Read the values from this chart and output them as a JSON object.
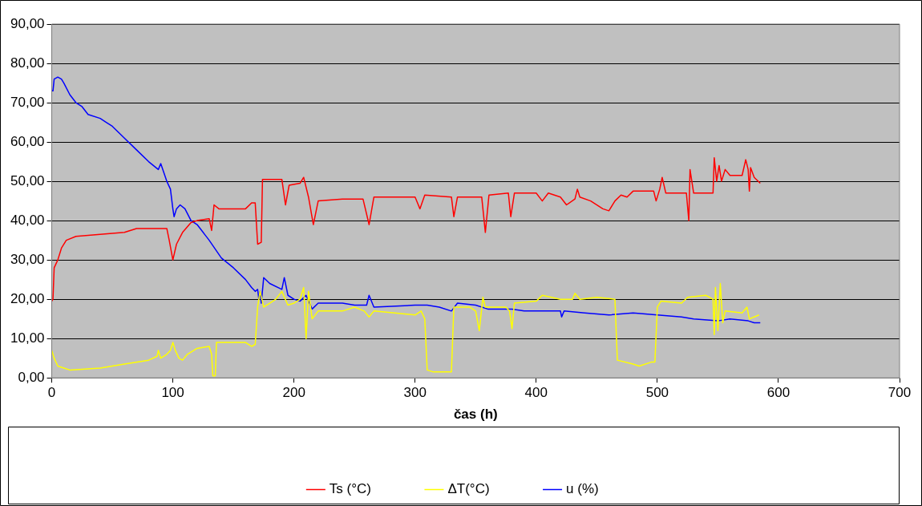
{
  "chart_data": {
    "type": "line",
    "xlabel": "čas (h)",
    "xlim": [
      0,
      700
    ],
    "xticks": [
      0,
      100,
      200,
      300,
      400,
      500,
      600,
      700
    ],
    "ylim": [
      0,
      90
    ],
    "yticks": [
      {
        "value": 0,
        "label": "0,00"
      },
      {
        "value": 10,
        "label": "10,00"
      },
      {
        "value": 20,
        "label": "20,00"
      },
      {
        "value": 30,
        "label": "30,00"
      },
      {
        "value": 40,
        "label": "40,00"
      },
      {
        "value": 50,
        "label": "50,00"
      },
      {
        "value": 60,
        "label": "60,00"
      },
      {
        "value": 70,
        "label": "70,00"
      },
      {
        "value": 80,
        "label": "80,00"
      },
      {
        "value": 90,
        "label": "90,00"
      }
    ],
    "grid": "y",
    "legend": "bottom",
    "marker": "none",
    "line_style": "solid",
    "series": [
      {
        "name": "Ts (°C)",
        "color": "#ff0000",
        "x": [
          0,
          1,
          2,
          5,
          8,
          12,
          20,
          40,
          60,
          70,
          95,
          97,
          100,
          103,
          108,
          115,
          120,
          130,
          132,
          134,
          138,
          160,
          165,
          168,
          170,
          173,
          174,
          190,
          193,
          196,
          205,
          208,
          212,
          216,
          220,
          240,
          257,
          262,
          266,
          300,
          304,
          308,
          330,
          332,
          335,
          355,
          358,
          361,
          377,
          379,
          382,
          400,
          405,
          410,
          420,
          425,
          432,
          434,
          436,
          445,
          455,
          460,
          465,
          470,
          475,
          480,
          497,
          499,
          502,
          504,
          507,
          524,
          526,
          527,
          530,
          546,
          547,
          549,
          551,
          553,
          556,
          560,
          570,
          573,
          575,
          576,
          577,
          580,
          585
        ],
        "values": [
          19.5,
          20,
          28,
          30,
          33,
          35,
          36,
          36.5,
          37,
          38,
          38,
          35,
          30,
          34,
          37,
          39.5,
          40,
          40.5,
          37.5,
          44,
          43,
          43,
          44.5,
          44.5,
          34,
          34.5,
          50.5,
          50.5,
          44,
          49,
          49.5,
          51,
          46,
          39,
          45,
          45.5,
          45.5,
          39,
          46,
          46,
          43,
          46.5,
          46,
          41,
          46,
          46,
          37,
          46.5,
          47,
          41,
          47,
          47,
          45,
          47,
          46,
          44,
          45.5,
          48,
          46,
          45,
          43,
          42.5,
          45,
          46.5,
          46,
          47.5,
          47.5,
          45,
          48,
          51,
          47,
          47,
          40,
          53,
          47,
          47,
          56,
          50,
          54,
          50,
          53,
          51.5,
          51.5,
          55.5,
          53,
          47.5,
          53.5,
          51,
          49.5
        ]
      },
      {
        "name": "ΔT(°C)",
        "color": "#ffff00",
        "x": [
          0,
          2,
          5,
          10,
          15,
          40,
          60,
          80,
          87,
          88,
          90,
          95,
          98,
          100,
          102,
          105,
          108,
          112,
          120,
          130,
          132,
          133,
          135,
          136,
          160,
          165,
          168,
          170,
          172,
          175,
          180,
          185,
          190,
          195,
          200,
          205,
          208,
          210,
          212,
          215,
          220,
          240,
          250,
          258,
          262,
          266,
          300,
          305,
          308,
          310,
          315,
          330,
          332,
          345,
          350,
          353,
          356,
          358,
          375,
          378,
          380,
          382,
          400,
          405,
          420,
          430,
          432,
          436,
          450,
          465,
          467,
          480,
          485,
          495,
          498,
          500,
          503,
          520,
          525,
          540,
          546,
          547,
          548,
          550,
          552,
          554,
          556,
          570,
          574,
          576,
          580,
          584
        ],
        "values": [
          7,
          5,
          3,
          2.5,
          2,
          2.5,
          3.5,
          4.5,
          5.5,
          7,
          5,
          6,
          7,
          9,
          7,
          5,
          4.5,
          6,
          7.5,
          8,
          6,
          0.5,
          0.5,
          9,
          9,
          8,
          8.5,
          18,
          22,
          18,
          19,
          20,
          22,
          18.5,
          19,
          20,
          23,
          10,
          22,
          15,
          17,
          17,
          18,
          17,
          15.5,
          17,
          16,
          17,
          15,
          2,
          1.5,
          1.5,
          18,
          18,
          17,
          12,
          20.5,
          18,
          18,
          17,
          12.5,
          19,
          19.5,
          21,
          20,
          20,
          21.5,
          20,
          20.5,
          20,
          4.5,
          3.5,
          3,
          4,
          4,
          18,
          19.5,
          19,
          20.5,
          21,
          20,
          11,
          23,
          12,
          24,
          14,
          17,
          16.5,
          18,
          15,
          15.5,
          16
        ]
      },
      {
        "name": "u (%)",
        "color": "#0000ff",
        "x": [
          0,
          1,
          2,
          5,
          8,
          10,
          15,
          20,
          25,
          30,
          40,
          45,
          50,
          60,
          70,
          80,
          88,
          90,
          95,
          98,
          100,
          101,
          103,
          106,
          110,
          115,
          120,
          125,
          130,
          140,
          150,
          160,
          165,
          168,
          170,
          171,
          172,
          173,
          175,
          180,
          190,
          192,
          195,
          200,
          205,
          210,
          215,
          220,
          240,
          250,
          260,
          262,
          266,
          300,
          310,
          320,
          330,
          335,
          350,
          360,
          380,
          390,
          420,
          421,
          423,
          440,
          460,
          480,
          500,
          520,
          530,
          550,
          560,
          575,
          580,
          585
        ],
        "values": [
          73,
          73,
          76,
          76.5,
          76,
          75,
          72,
          70,
          69,
          67,
          66,
          65,
          64,
          61,
          58,
          55,
          53,
          54.5,
          50,
          48,
          43,
          41,
          43,
          44,
          43,
          40,
          39,
          37,
          35,
          30.5,
          28,
          25,
          23,
          22,
          22.5,
          20,
          22,
          19,
          25.5,
          24,
          22.5,
          25.5,
          21,
          20,
          19.5,
          21,
          17.5,
          19,
          19,
          18.5,
          18.5,
          21,
          18,
          18.5,
          18.5,
          18,
          17,
          19,
          18.5,
          17.5,
          17.5,
          17,
          17,
          15.5,
          17,
          16.5,
          16,
          16.5,
          16,
          15.5,
          15,
          14.5,
          15,
          14.5,
          14,
          14
        ]
      }
    ]
  }
}
